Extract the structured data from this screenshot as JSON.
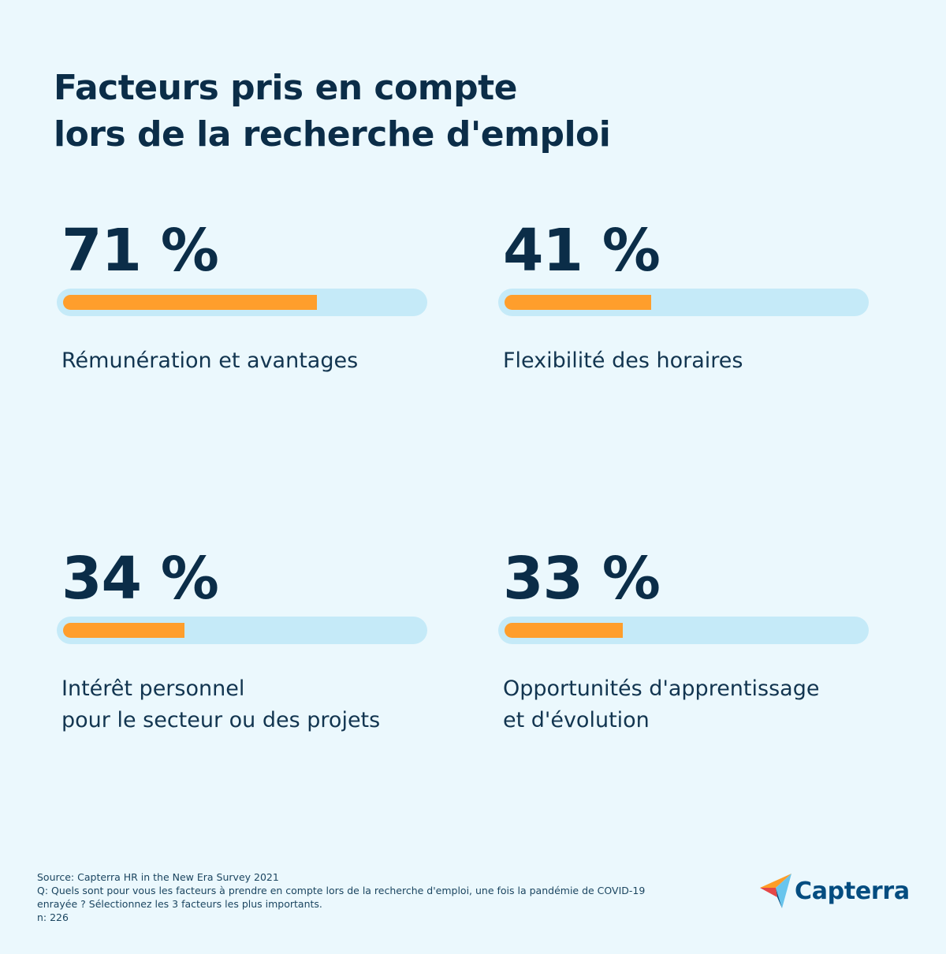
{
  "title": {
    "line1": "Facteurs pris en compte",
    "line2": "lors de la recherche d'emploi"
  },
  "chart_data": {
    "type": "bar",
    "title": "Facteurs pris en compte lors de la recherche d'emploi",
    "unit": "%",
    "ylim": [
      0,
      100
    ],
    "items": [
      {
        "value": 71,
        "value_label": "71 %",
        "label_lines": [
          "Rémunération et avantages"
        ]
      },
      {
        "value": 41,
        "value_label": "41 %",
        "label_lines": [
          "Flexibilité des horaires"
        ]
      },
      {
        "value": 34,
        "value_label": "34 %",
        "label_lines": [
          "Intérêt personnel",
          "pour le secteur ou des projets"
        ]
      },
      {
        "value": 33,
        "value_label": "33 %",
        "label_lines": [
          "Opportunités d'apprentissage",
          "et d'évolution"
        ]
      }
    ]
  },
  "colors": {
    "background": "#ebf8fd",
    "bar_fill": "#ff9e2c",
    "bar_track": "#c5eaf8",
    "text": "#0b2d48"
  },
  "footer": {
    "source": "Source: Capterra HR in the New Era Survey 2021",
    "question_line1": "Q: Quels sont pour vous les facteurs à prendre en compte lors de la recherche d'emploi, une fois la pandémie de COVID-19",
    "question_line2": "enrayée ? Sélectionnez les 3 facteurs les plus importants.",
    "sample": "n: 226"
  },
  "logo": {
    "text": "Capterra",
    "icon": "capterra-logo-icon"
  }
}
